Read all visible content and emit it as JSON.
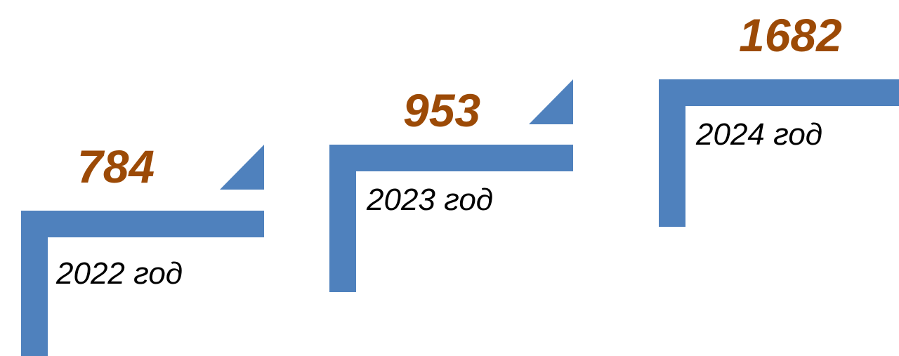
{
  "colors": {
    "step": "#4f81bd",
    "value": "#9c4a06",
    "year": "#000000"
  },
  "steps": [
    {
      "value": "784",
      "year": "2022 год"
    },
    {
      "value": "953",
      "year": "2023 год"
    },
    {
      "value": "1682",
      "year": "2024 год"
    }
  ]
}
